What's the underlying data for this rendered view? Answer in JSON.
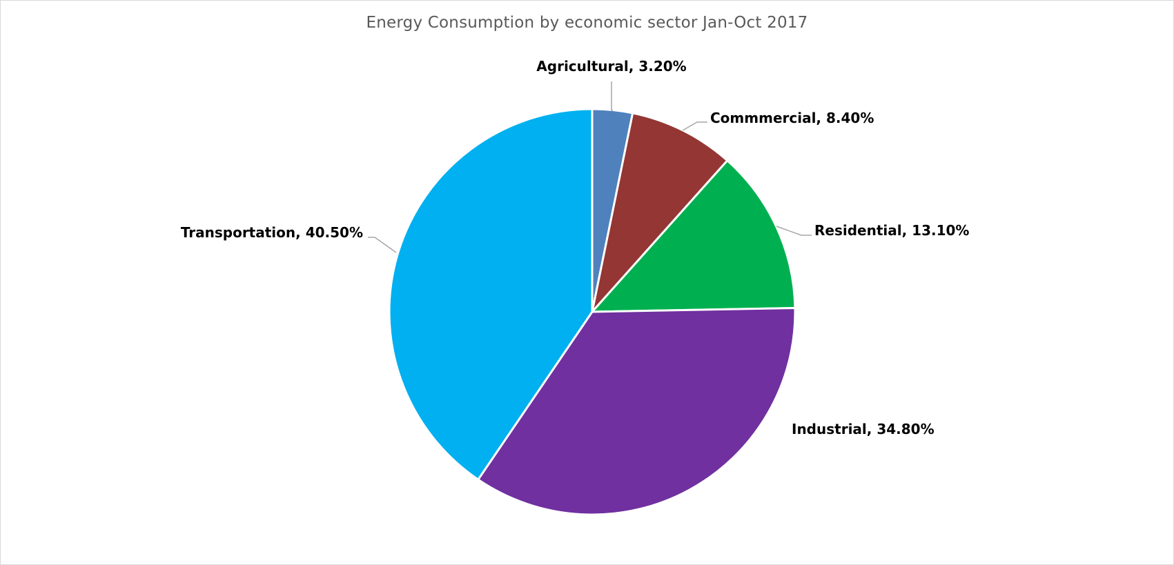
{
  "chart_data": {
    "type": "pie",
    "title": "Energy Consumption by economic sector Jan-Oct 2017",
    "start_angle_deg": 0,
    "direction": "clockwise",
    "slices": [
      {
        "label": "Agricultural",
        "value": 3.2,
        "display": "Agricultural, 3.20%",
        "color": "#4f81bd"
      },
      {
        "label": "Commmercial",
        "value": 8.4,
        "display": "Commmercial, 8.40%",
        "color": "#943634"
      },
      {
        "label": "Residential",
        "value": 13.1,
        "display": "Residential, 13.10%",
        "color": "#00b050"
      },
      {
        "label": "Industrial",
        "value": 34.8,
        "display": "Industrial, 34.80%",
        "color": "#7030a0"
      },
      {
        "label": "Transportation",
        "value": 40.5,
        "display": "Transportation, 40.50%",
        "color": "#00b0f0"
      }
    ],
    "legend": "none",
    "data_labels": "outside"
  }
}
